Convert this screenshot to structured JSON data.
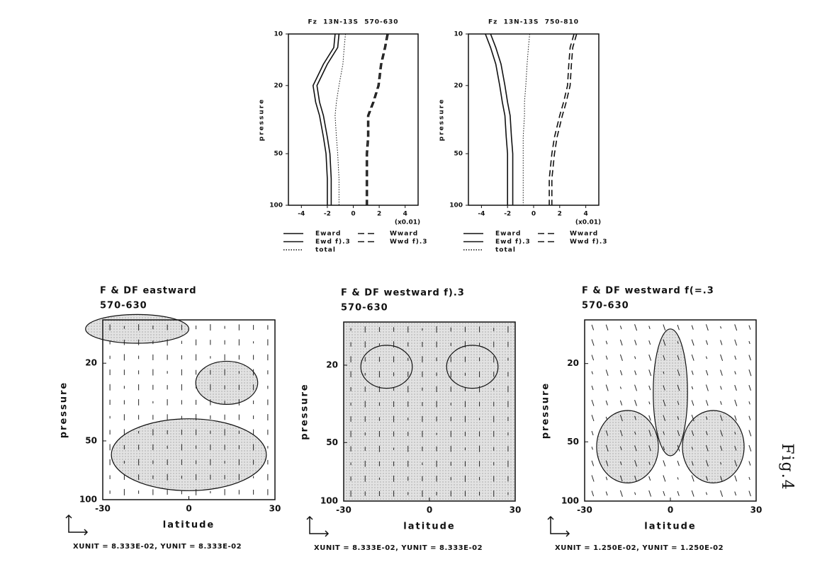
{
  "chart_data": [
    {
      "type": "line",
      "title": "Fz  13N-13S  570-630",
      "ylabel": "pressure",
      "xnote": "(x0.01)",
      "y": [
        10,
        12,
        15,
        20,
        25,
        30,
        40,
        50,
        70,
        100
      ],
      "xlim": [
        -5,
        5
      ],
      "xticks": [
        -4,
        -2,
        0,
        2,
        4
      ],
      "ylim": [
        10,
        100
      ],
      "yticks": [
        10,
        20,
        50,
        100
      ],
      "log_y": true,
      "series": [
        {
          "name": "Eward",
          "color": "#111",
          "dash": "solid",
          "values": [
            -1.4,
            -1.5,
            -2.3,
            -3.1,
            -2.9,
            -2.6,
            -2.3,
            -2.1,
            -2.0,
            -2.0
          ]
        },
        {
          "name": "Ewd f).3",
          "color": "#111",
          "dash": "solid",
          "values": [
            -1.1,
            -1.2,
            -2.0,
            -2.8,
            -2.6,
            -2.3,
            -2.0,
            -1.8,
            -1.7,
            -1.7
          ]
        },
        {
          "name": "total",
          "color": "#111",
          "dash": "dotted",
          "values": [
            -0.6,
            -0.7,
            -0.8,
            -1.1,
            -1.3,
            -1.4,
            -1.3,
            -1.2,
            -1.1,
            -1.1
          ]
        },
        {
          "name": "Wward",
          "color": "#111",
          "dash": "dashed",
          "values": [
            2.7,
            2.5,
            2.2,
            2.0,
            1.6,
            1.2,
            1.2,
            1.1,
            1.1,
            1.1
          ]
        },
        {
          "name": "Wwd f).3",
          "color": "#111",
          "dash": "dashed",
          "values": [
            2.6,
            2.4,
            2.1,
            1.9,
            1.5,
            1.1,
            1.1,
            1.0,
            1.0,
            1.0
          ]
        }
      ]
    },
    {
      "type": "line",
      "title": "Fz  13N-13S  750-810",
      "ylabel": "pressure",
      "xnote": "(x0.01)",
      "y": [
        10,
        12,
        15,
        20,
        25,
        30,
        40,
        50,
        70,
        100
      ],
      "xlim": [
        -5,
        5
      ],
      "xticks": [
        -4,
        -2,
        0,
        2,
        4
      ],
      "ylim": [
        10,
        100
      ],
      "yticks": [
        10,
        20,
        50,
        100
      ],
      "log_y": true,
      "series": [
        {
          "name": "Eward",
          "color": "#111",
          "dash": "solid",
          "values": [
            -3.7,
            -3.3,
            -2.9,
            -2.6,
            -2.4,
            -2.2,
            -2.1,
            -2.0,
            -2.0,
            -2.0
          ]
        },
        {
          "name": "Ewd f).3",
          "color": "#111",
          "dash": "solid",
          "values": [
            -3.3,
            -2.9,
            -2.5,
            -2.2,
            -2.0,
            -1.8,
            -1.7,
            -1.6,
            -1.6,
            -1.6
          ]
        },
        {
          "name": "total",
          "color": "#111",
          "dash": "dotted",
          "values": [
            -0.3,
            -0.4,
            -0.5,
            -0.6,
            -0.7,
            -0.7,
            -0.8,
            -0.8,
            -0.8,
            -0.8
          ]
        },
        {
          "name": "Wward",
          "color": "#111",
          "dash": "dashed",
          "values": [
            3.1,
            2.8,
            2.7,
            2.6,
            2.3,
            2.0,
            1.6,
            1.4,
            1.2,
            1.2
          ]
        },
        {
          "name": "Wwd f).3",
          "color": "#111",
          "dash": "dashed",
          "values": [
            3.3,
            3.0,
            2.9,
            2.8,
            2.5,
            2.2,
            1.8,
            1.6,
            1.4,
            1.4
          ]
        }
      ]
    },
    {
      "type": "contour",
      "title": "F & DF eastward",
      "subtitle": "570-630",
      "xlabel": "latitude",
      "ylabel": "pressure",
      "xlim": [
        -30,
        30
      ],
      "xticks": [
        -30,
        0,
        30
      ],
      "ylim": [
        12,
        100
      ],
      "yticks": [
        20,
        50,
        100
      ],
      "log_y": true,
      "footer": "XUNIT = 8.333E-02, YUNIT = 8.333E-02"
    },
    {
      "type": "contour",
      "title": "F & DF westward f).3",
      "subtitle": "570-630",
      "xlabel": "latitude",
      "ylabel": "pressure",
      "xlim": [
        -30,
        30
      ],
      "xticks": [
        -30,
        0,
        30
      ],
      "ylim": [
        12,
        100
      ],
      "yticks": [
        20,
        50,
        100
      ],
      "log_y": true,
      "footer": "XUNIT = 8.333E-02, YUNIT = 8.333E-02"
    },
    {
      "type": "contour",
      "title": "F & DF westward f(=.3",
      "subtitle": "570-630",
      "xlabel": "latitude",
      "ylabel": "pressure",
      "xlim": [
        -30,
        30
      ],
      "xticks": [
        -30,
        0,
        30
      ],
      "ylim": [
        12,
        100
      ],
      "yticks": [
        20,
        50,
        100
      ],
      "log_y": true,
      "footer": "XUNIT = 1.250E-02, YUNIT = 1.250E-02"
    }
  ],
  "annotation": "Fig.4"
}
